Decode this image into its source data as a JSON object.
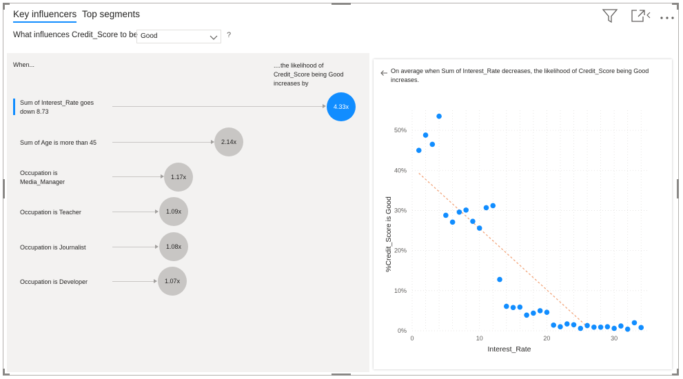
{
  "tabs": [
    {
      "label": "Key influencers",
      "active": true
    },
    {
      "label": "Top segments",
      "active": false
    }
  ],
  "toolbar": {
    "icons": [
      "filter-icon",
      "focus-mode-icon",
      "more-options-icon"
    ]
  },
  "question": {
    "prefix": "What influences Credit_Score to be",
    "selected": "Good",
    "help": "?"
  },
  "influencers": {
    "header_when": "When...",
    "header_likelihood": "....the likelihood of Credit_Score being Good increases by",
    "items": [
      {
        "label": "Sum of Interest_Rate goes down 8.73",
        "value": "4.33x",
        "selected": true
      },
      {
        "label": "Sum of Age is more than 45",
        "value": "2.14x",
        "selected": false
      },
      {
        "label": "Occupation is Media_Manager",
        "value": "1.17x",
        "selected": false
      },
      {
        "label": "Occupation is Teacher",
        "value": "1.09x",
        "selected": false
      },
      {
        "label": "Occupation is Journalist",
        "value": "1.08x",
        "selected": false
      },
      {
        "label": "Occupation is Developer",
        "value": "1.07x",
        "selected": false
      }
    ]
  },
  "detail": {
    "summary": "On average when Sum of Interest_Rate decreases, the likelihood of Credit_Score being Good increases."
  },
  "colors": {
    "accent": "#118dff",
    "bubble": "#c8c6c4",
    "trend": "#f2a47a",
    "point": "#118dff"
  },
  "chart_data": {
    "type": "scatter",
    "xlabel": "Interest_Rate",
    "ylabel": "%Credit_Score is Good",
    "xlim": [
      0,
      35
    ],
    "ylim": [
      0,
      55
    ],
    "x_ticks": [
      0,
      10,
      20,
      30
    ],
    "x_tick_labels": [
      "0",
      "10",
      "20",
      "30"
    ],
    "y_ticks": [
      0,
      10,
      20,
      30,
      40,
      50
    ],
    "y_tick_labels": [
      "0%",
      "10%",
      "20%",
      "30%",
      "40%",
      "50%"
    ],
    "grid": true,
    "points": [
      {
        "x": 1,
        "y": 45
      },
      {
        "x": 2,
        "y": 48.8
      },
      {
        "x": 3,
        "y": 46.5
      },
      {
        "x": 4,
        "y": 53.5
      },
      {
        "x": 5,
        "y": 28.8
      },
      {
        "x": 6,
        "y": 27.1
      },
      {
        "x": 7,
        "y": 29.6
      },
      {
        "x": 8,
        "y": 30.1
      },
      {
        "x": 9,
        "y": 27.3
      },
      {
        "x": 10,
        "y": 25.6
      },
      {
        "x": 11,
        "y": 30.7
      },
      {
        "x": 12,
        "y": 31.2
      },
      {
        "x": 13,
        "y": 12.8
      },
      {
        "x": 14,
        "y": 6.1
      },
      {
        "x": 15,
        "y": 5.8
      },
      {
        "x": 16,
        "y": 5.9
      },
      {
        "x": 17,
        "y": 3.9
      },
      {
        "x": 18,
        "y": 4.4
      },
      {
        "x": 19,
        "y": 5.0
      },
      {
        "x": 20,
        "y": 4.6
      },
      {
        "x": 21,
        "y": 1.4
      },
      {
        "x": 22,
        "y": 1.0
      },
      {
        "x": 23,
        "y": 1.7
      },
      {
        "x": 24,
        "y": 1.5
      },
      {
        "x": 25,
        "y": 0.6
      },
      {
        "x": 26,
        "y": 1.3
      },
      {
        "x": 27,
        "y": 0.9
      },
      {
        "x": 28,
        "y": 0.9
      },
      {
        "x": 29,
        "y": 1.0
      },
      {
        "x": 30,
        "y": 0.6
      },
      {
        "x": 31,
        "y": 1.2
      },
      {
        "x": 32,
        "y": 0.4
      },
      {
        "x": 33,
        "y": 2.0
      },
      {
        "x": 34,
        "y": 0.8
      }
    ],
    "trend_line": {
      "x": [
        1,
        26
      ],
      "y": [
        39.3,
        1.0
      ]
    }
  }
}
